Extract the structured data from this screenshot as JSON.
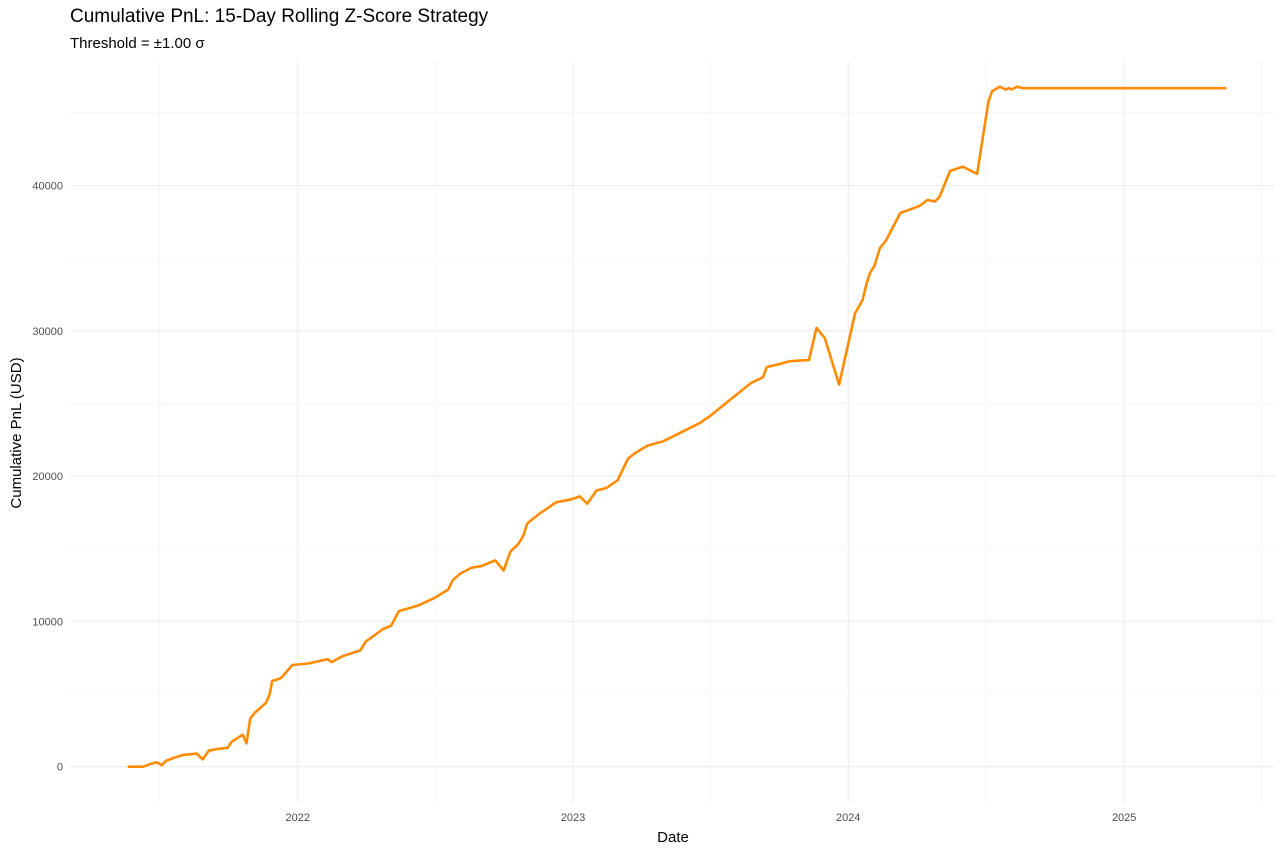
{
  "chart_data": {
    "type": "line",
    "title": "Cumulative PnL: 15-Day Rolling Z-Score Strategy",
    "subtitle": "Threshold = ±1.00 σ",
    "xlabel": "Date",
    "ylabel": "Cumulative PnL (USD)",
    "x_ticks": [
      "2022",
      "2023",
      "2024",
      "2025"
    ],
    "y_ticks": [
      0,
      10000,
      20000,
      30000,
      40000
    ],
    "xlim": [
      "2021-03-05",
      "2025-07-20"
    ],
    "ylim": [
      -2500,
      48500
    ],
    "grid": true,
    "legend": "none",
    "line_color": "#ff8c00",
    "series": [
      {
        "x": [
          "2021-05-22",
          "2021-06-10",
          "2021-06-20",
          "2021-06-28",
          "2021-07-05",
          "2021-07-10",
          "2021-07-20",
          "2021-08-01",
          "2021-08-20",
          "2021-08-28",
          "2021-09-05",
          "2021-09-15",
          "2021-09-30",
          "2021-10-05",
          "2021-10-20",
          "2021-10-25",
          "2021-10-30",
          "2021-11-05",
          "2021-11-20",
          "2021-11-25",
          "2021-11-28",
          "2021-12-05",
          "2021-12-10",
          "2021-12-25",
          "2022-01-15",
          "2022-02-10",
          "2022-02-15",
          "2022-03-01",
          "2022-03-25",
          "2022-04-01",
          "2022-04-25",
          "2022-05-05",
          "2022-05-15",
          "2022-06-10",
          "2022-07-01",
          "2022-07-20",
          "2022-07-25",
          "2022-08-05",
          "2022-08-20",
          "2022-09-01",
          "2022-09-20",
          "2022-10-01",
          "2022-10-10",
          "2022-10-20",
          "2022-10-25",
          "2022-10-28",
          "2022-11-01",
          "2022-11-05",
          "2022-11-20",
          "2022-12-10",
          "2022-12-30",
          "2023-01-10",
          "2023-01-20",
          "2023-02-01",
          "2023-02-15",
          "2023-03-01",
          "2023-03-15",
          "2023-03-25",
          "2023-04-10",
          "2023-05-01",
          "2023-06-01",
          "2023-06-20",
          "2023-06-25",
          "2023-07-01",
          "2023-08-01",
          "2023-08-25",
          "2023-09-10",
          "2023-09-15",
          "2023-10-01",
          "2023-10-15",
          "2023-11-10",
          "2023-11-20",
          "2023-12-01",
          "2023-12-20",
          "2024-01-10",
          "2024-01-20",
          "2024-01-25",
          "2024-01-30",
          "2024-02-05",
          "2024-02-12",
          "2024-02-20",
          "2024-03-10",
          "2024-04-05",
          "2024-04-15",
          "2024-04-25",
          "2024-05-01",
          "2024-05-15",
          "2024-06-01",
          "2024-06-20",
          "2024-07-05",
          "2024-07-10",
          "2024-07-20",
          "2024-07-28",
          "2024-08-01",
          "2024-08-05",
          "2024-08-08",
          "2024-08-12",
          "2024-08-20",
          "2024-09-10",
          "2024-10-01",
          "2024-10-20",
          "2024-11-10",
          "2024-12-01",
          "2024-12-20",
          "2024-12-25",
          "2025-01-05",
          "2025-01-15",
          "2025-02-01",
          "2025-02-20",
          "2025-02-28",
          "2025-03-05",
          "2025-03-10",
          "2025-03-20",
          "2025-04-05",
          "2025-04-07",
          "2025-04-08",
          "2025-04-10",
          "2025-04-20",
          "2025-05-01",
          "2025-05-15"
        ],
        "values": [
          0,
          0,
          200,
          300,
          100,
          400,
          600,
          800,
          900,
          500,
          1100,
          1200,
          1300,
          1700,
          2200,
          1600,
          3300,
          3700,
          4400,
          5000,
          5900,
          6000,
          6100,
          7000,
          7100,
          7400,
          7200,
          7600,
          8000,
          8600,
          9500,
          9700,
          10700,
          11100,
          11600,
          12200,
          12800,
          13300,
          13700,
          13800,
          14200,
          13500,
          14800,
          15300,
          15700,
          16000,
          16700,
          16900,
          17500,
          18200,
          18400,
          18600,
          18100,
          19000,
          19200,
          19700,
          21200,
          21600,
          22100,
          22400,
          23200,
          23700,
          23900,
          24100,
          25400,
          26400,
          26800,
          27500,
          27700,
          27900,
          28000,
          30200,
          29500,
          26300,
          31200,
          32100,
          33200,
          34000,
          34500,
          35700,
          36200,
          38100,
          38600,
          39000,
          38900,
          39200,
          41000,
          41300,
          40800,
          45800,
          46500,
          46800,
          46600,
          46700,
          46600,
          46700,
          46800,
          46700,
          46700,
          46700,
          46700,
          46700,
          46700,
          46700,
          46700,
          46700,
          46700,
          46700,
          46700,
          46700,
          46700,
          46700,
          46700,
          46700,
          46700,
          46700,
          46700,
          46700,
          46700,
          46700
        ]
      }
    ]
  }
}
